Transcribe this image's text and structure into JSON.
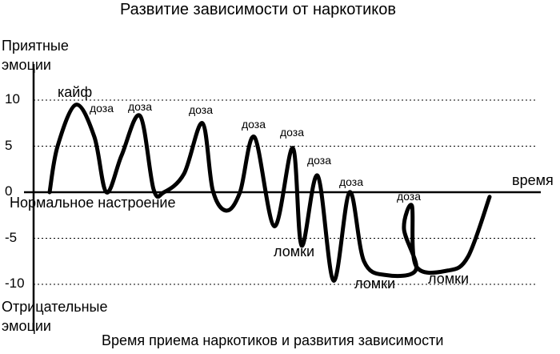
{
  "title": "Развитие зависимости от наркотиков",
  "y_top_label": [
    "Приятные",
    "эмоции"
  ],
  "y_bottom_label": [
    "Отрицательные",
    "эмоции"
  ],
  "x_label": "Время приема наркотиков и развития зависимости",
  "time_label": "время",
  "baseline_label": "Нормальное настроение",
  "chart_data": {
    "type": "line",
    "title": "Развитие зависимости от наркотиков",
    "xlabel": "Время приема наркотиков и развития зависимости",
    "ylabel": "Приятные эмоции / Отрицательные эмоции",
    "ylim": [
      -10,
      10
    ],
    "yticks": [
      "10",
      "5",
      "0",
      "-5",
      "-10"
    ],
    "grid": "dotted horizontal at 10, 5, -5, -10",
    "series": [
      {
        "y": [
          0,
          5,
          9.5,
          6,
          0,
          4,
          8.3,
          0.3,
          0,
          2,
          7.5,
          0.2,
          -2,
          0,
          6,
          -3.7,
          4.8,
          -5.8,
          1.8,
          -9.6,
          0,
          -7.5,
          -9,
          -8.4,
          -4,
          -1.5,
          -8,
          -8.5,
          -7,
          -0.5
        ]
      }
    ],
    "annotations": [
      {
        "text": "кайф",
        "style": "large"
      },
      {
        "text": "доза"
      },
      {
        "text": "доза"
      },
      {
        "text": "доза"
      },
      {
        "text": "доза"
      },
      {
        "text": "доза"
      },
      {
        "text": "доза"
      },
      {
        "text": "доза"
      },
      {
        "text": "доза"
      },
      {
        "text": "ломки",
        "style": "large"
      },
      {
        "text": "ломки",
        "style": "large"
      },
      {
        "text": "ломки",
        "style": "large"
      }
    ]
  }
}
